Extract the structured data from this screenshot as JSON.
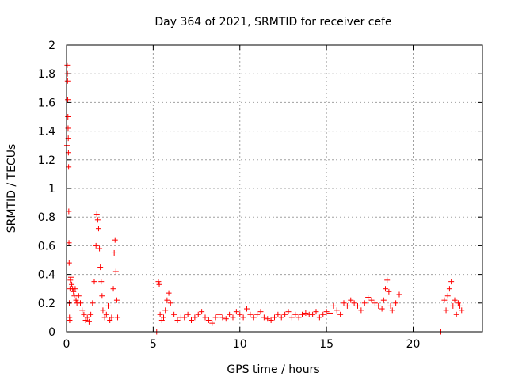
{
  "chart_data": {
    "type": "scatter",
    "title": "Day 364 of 2021, SRMTID for receiver cefe",
    "xlabel": "GPS time / hours",
    "ylabel": "SRMTID / TECUs",
    "xlim": [
      0,
      24
    ],
    "ylim": [
      0,
      2
    ],
    "x_ticks": [
      0,
      5,
      10,
      15,
      20
    ],
    "x_tick_labels": [
      "0",
      "5",
      "10",
      "15",
      "20"
    ],
    "y_ticks": [
      0,
      0.2,
      0.4,
      0.6,
      0.8,
      1,
      1.2,
      1.4,
      1.6,
      1.8,
      2
    ],
    "y_tick_labels": [
      "0",
      "0.2",
      "0.4",
      "0.6",
      "0.8",
      "1",
      "1.2",
      "1.4",
      "1.6",
      "1.8",
      "2"
    ],
    "grid": true,
    "marker": "+",
    "series": [
      {
        "name": "SRMTID",
        "color": "#ff0000",
        "x": [
          0.02,
          0.04,
          0.05,
          0.06,
          0.07,
          0.08,
          0.09,
          0.1,
          0.11,
          0.12,
          0.13,
          0.14,
          0.15,
          0.16,
          0.17,
          0.18,
          0.2,
          0.22,
          0.25,
          0.3,
          0.35,
          0.4,
          0.45,
          0.5,
          0.55,
          0.6,
          0.7,
          0.8,
          0.9,
          1.0,
          1.1,
          1.2,
          1.3,
          1.4,
          1.5,
          1.6,
          1.7,
          1.75,
          1.8,
          1.85,
          1.9,
          1.95,
          2.0,
          2.05,
          2.1,
          2.2,
          2.3,
          2.4,
          2.5,
          2.6,
          2.7,
          2.75,
          2.8,
          2.85,
          2.9,
          2.95,
          5.2,
          5.3,
          5.35,
          5.4,
          5.5,
          5.6,
          5.7,
          5.8,
          5.9,
          6.0,
          6.2,
          6.4,
          6.6,
          6.8,
          7.0,
          7.2,
          7.4,
          7.6,
          7.8,
          8.0,
          8.2,
          8.4,
          8.6,
          8.8,
          9.0,
          9.2,
          9.4,
          9.6,
          9.8,
          10.0,
          10.2,
          10.4,
          10.6,
          10.8,
          11.0,
          11.2,
          11.4,
          11.6,
          11.8,
          12.0,
          12.2,
          12.4,
          12.6,
          12.8,
          13.0,
          13.2,
          13.4,
          13.6,
          13.8,
          14.0,
          14.2,
          14.4,
          14.6,
          14.8,
          15.0,
          15.2,
          15.4,
          15.6,
          15.8,
          16.0,
          16.2,
          16.4,
          16.6,
          16.8,
          17.0,
          17.2,
          17.4,
          17.6,
          17.8,
          18.0,
          18.2,
          18.3,
          18.4,
          18.5,
          18.6,
          18.7,
          18.8,
          19.0,
          19.2,
          21.6,
          21.8,
          21.9,
          22.0,
          22.1,
          22.2,
          22.3,
          22.4,
          22.5,
          22.6,
          22.7,
          22.8
        ],
        "y": [
          1.3,
          1.86,
          1.8,
          1.75,
          1.62,
          1.5,
          1.42,
          1.35,
          1.25,
          1.15,
          0.84,
          0.62,
          0.48,
          0.2,
          0.1,
          0.08,
          0.3,
          0.36,
          0.38,
          0.33,
          0.3,
          0.28,
          0.25,
          0.3,
          0.22,
          0.2,
          0.25,
          0.2,
          0.15,
          0.12,
          0.08,
          0.1,
          0.07,
          0.12,
          0.2,
          0.35,
          0.6,
          0.82,
          0.78,
          0.72,
          0.58,
          0.45,
          0.35,
          0.25,
          0.15,
          0.1,
          0.12,
          0.18,
          0.08,
          0.1,
          0.3,
          0.55,
          0.64,
          0.42,
          0.22,
          0.1,
          0.0,
          0.35,
          0.33,
          0.12,
          0.08,
          0.1,
          0.15,
          0.22,
          0.27,
          0.2,
          0.12,
          0.08,
          0.1,
          0.1,
          0.12,
          0.08,
          0.1,
          0.12,
          0.14,
          0.1,
          0.08,
          0.06,
          0.1,
          0.12,
          0.1,
          0.09,
          0.12,
          0.1,
          0.14,
          0.12,
          0.1,
          0.16,
          0.12,
          0.1,
          0.12,
          0.14,
          0.1,
          0.09,
          0.08,
          0.1,
          0.12,
          0.1,
          0.12,
          0.14,
          0.1,
          0.12,
          0.1,
          0.12,
          0.13,
          0.12,
          0.12,
          0.14,
          0.1,
          0.12,
          0.14,
          0.13,
          0.18,
          0.15,
          0.12,
          0.2,
          0.18,
          0.22,
          0.2,
          0.18,
          0.15,
          0.2,
          0.24,
          0.22,
          0.2,
          0.18,
          0.16,
          0.22,
          0.3,
          0.36,
          0.28,
          0.18,
          0.15,
          0.2,
          0.26,
          0.0,
          0.22,
          0.15,
          0.25,
          0.3,
          0.35,
          0.18,
          0.22,
          0.12,
          0.2,
          0.18,
          0.15
        ]
      }
    ]
  }
}
